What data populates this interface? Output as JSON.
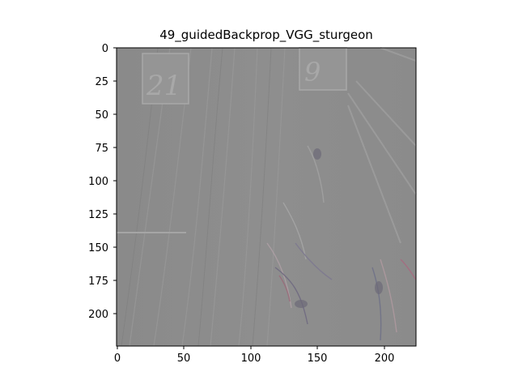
{
  "title": "49_guidedBackprop_VGG_sturgeon",
  "image": {
    "description": "Guided backpropagation saliency visualization of a grayscale scene with two placards showing numbers",
    "placard_left_text": "21",
    "placard_right_text": "9"
  },
  "axes": {
    "x_ticks": [
      "0",
      "50",
      "100",
      "150",
      "200"
    ],
    "y_ticks": [
      "0",
      "25",
      "50",
      "75",
      "100",
      "125",
      "150",
      "175",
      "200"
    ],
    "xlim": [
      0,
      224
    ],
    "ylim": [
      224,
      0
    ]
  }
}
